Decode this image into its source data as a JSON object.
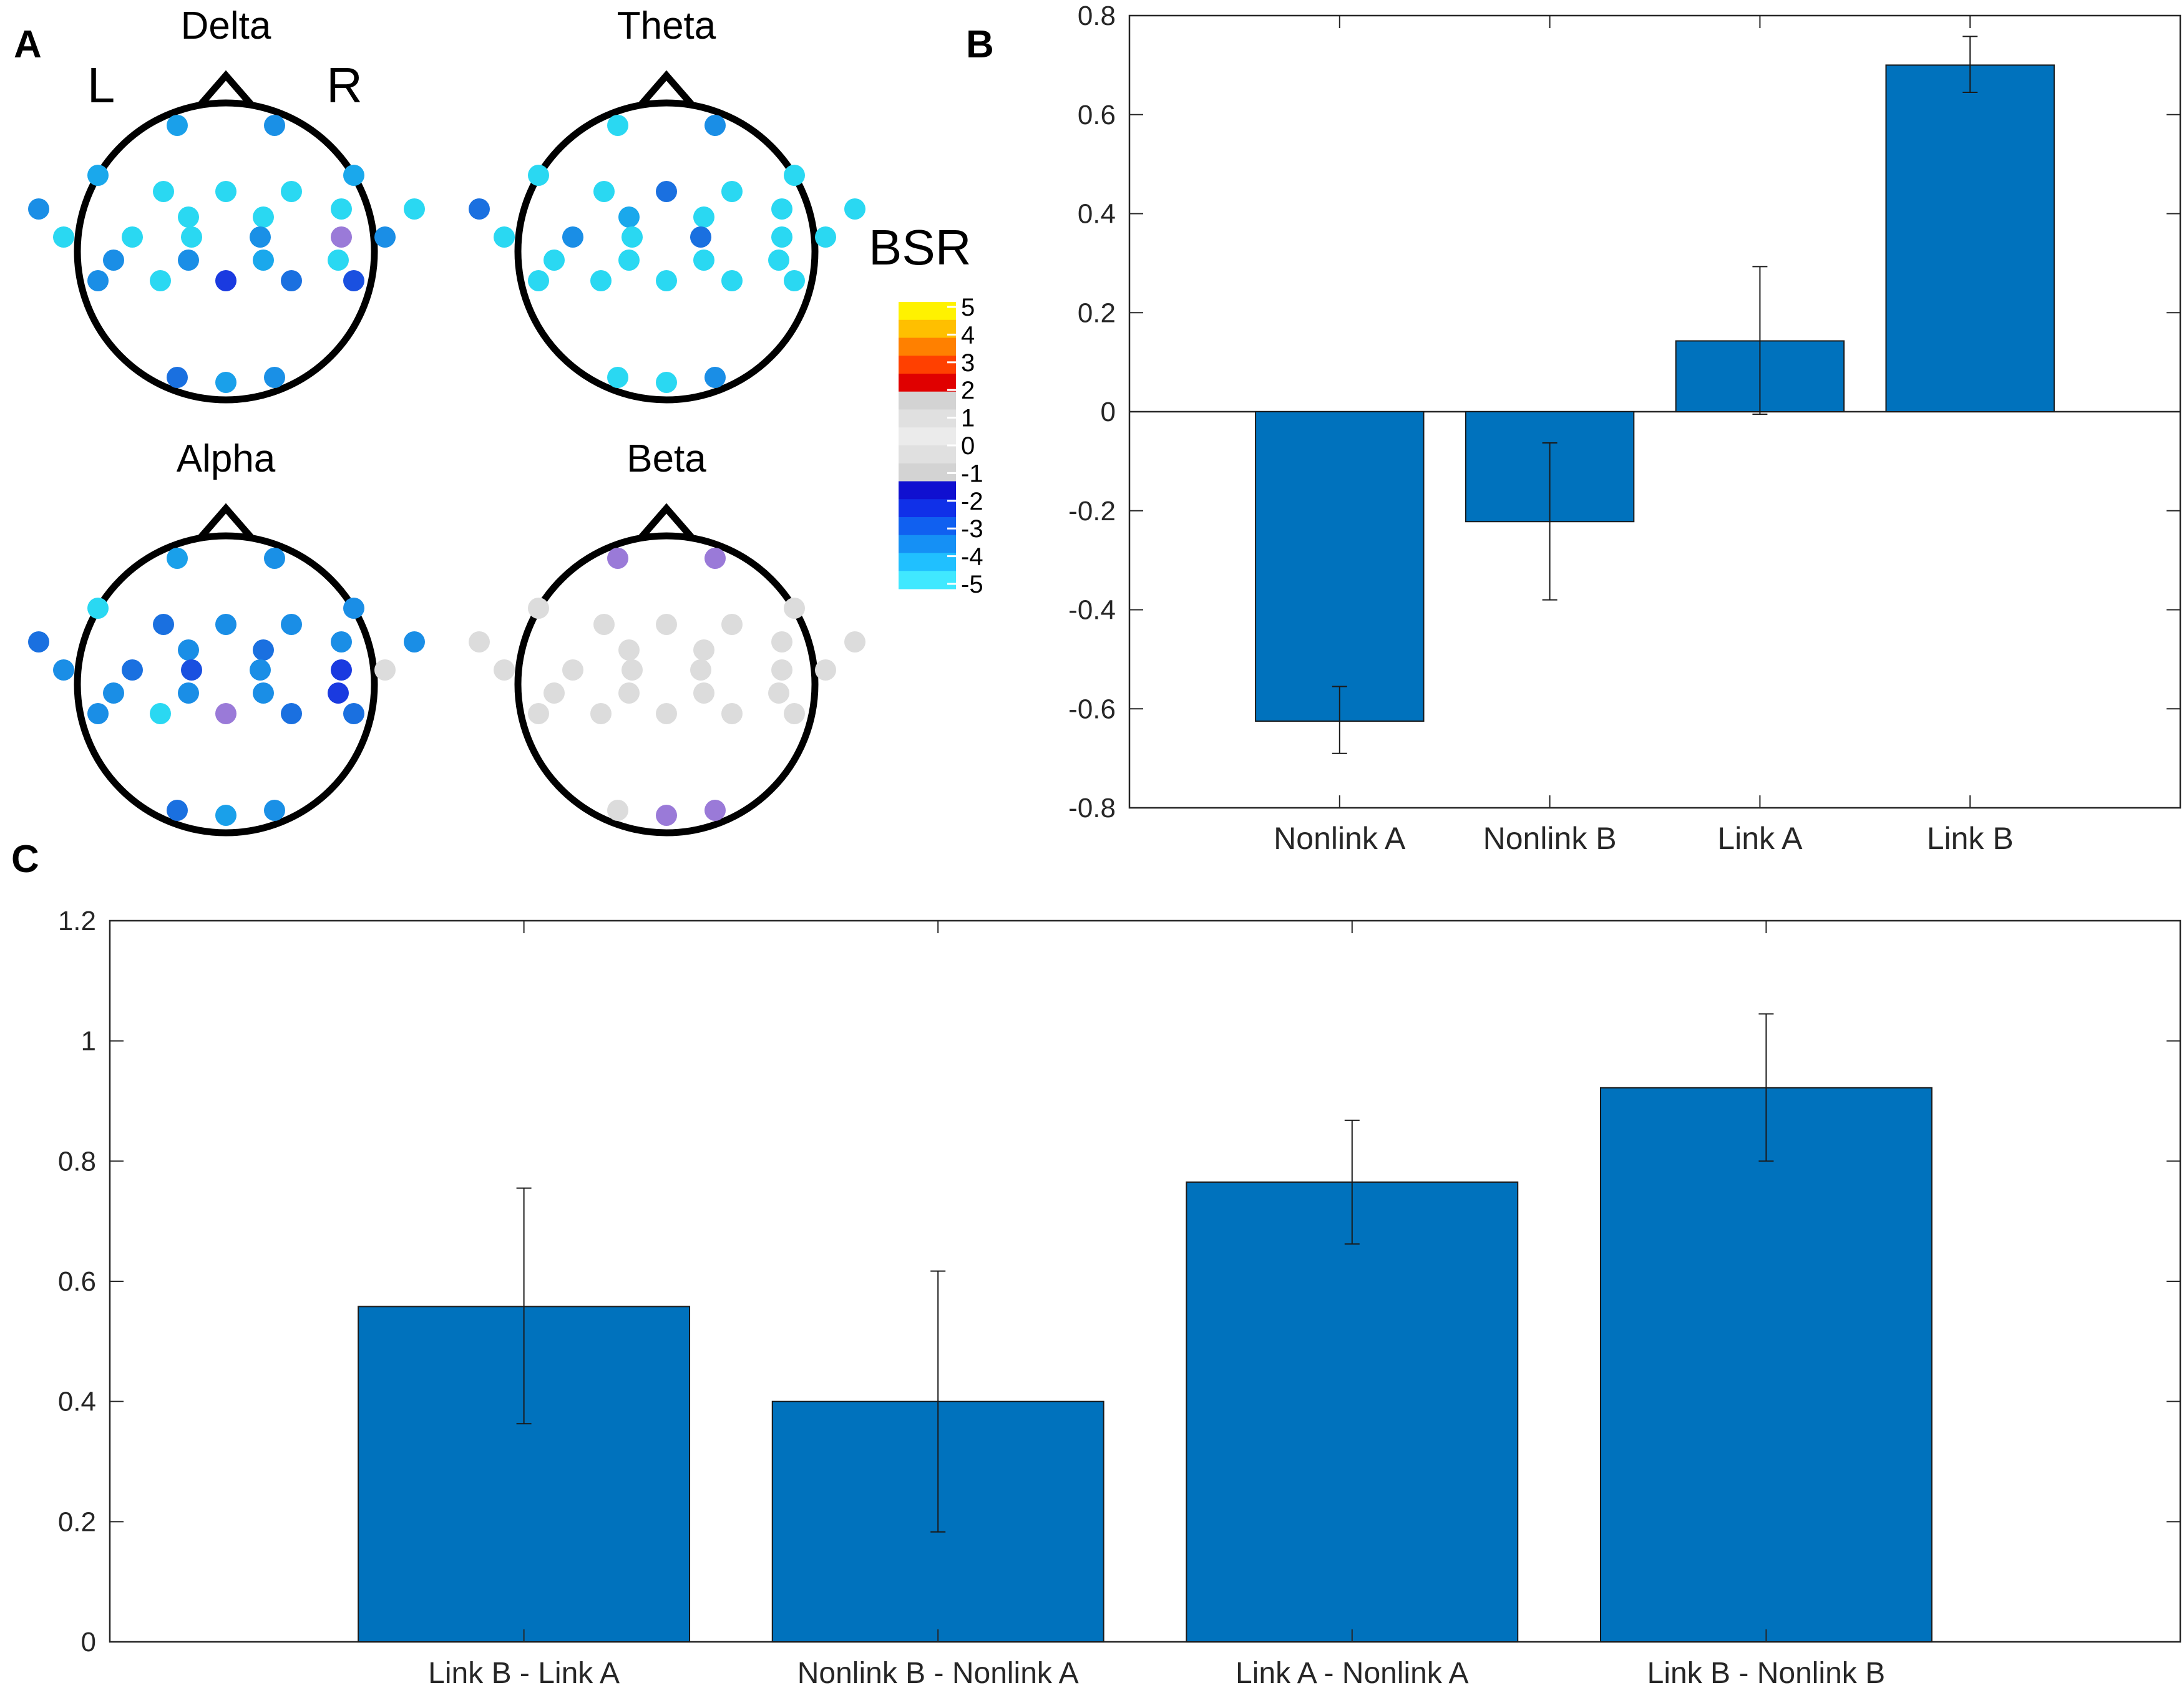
{
  "panels": {
    "a_label": "A",
    "b_label": "B",
    "c_label": "C"
  },
  "topomap": {
    "left_label": "L",
    "right_label": "R",
    "colorbar_title": "BSR",
    "colorbar_ticks": [
      "5",
      "4",
      "3",
      "2",
      "1",
      "0",
      "-1",
      "-2",
      "-3",
      "-4",
      "-5"
    ],
    "colorbar_colors": [
      "#fff200",
      "#ffbf00",
      "#ff8000",
      "#ff4000",
      "#e00000",
      "#d3d3d3",
      "#e0e0e0",
      "#ebebeb",
      "#e0e0e0",
      "#d3d3d3",
      "#1010d0",
      "#1030e8",
      "#1060f0",
      "#1590f5",
      "#20c0ff",
      "#40e8ff"
    ],
    "bands": [
      {
        "name": "Delta",
        "colors": [
          "#1aa0ea",
          "#1a90e6",
          "#1aa8ec",
          "#1aa8ec",
          "#2ad8f2",
          "#2ad8f2",
          "#2ad8f2",
          "#1a8ee6",
          "#2ad8f2",
          "#2ad8f2",
          "#2ad8f2",
          "#2ad8f2",
          "#2ad8f2",
          "#2ad8f2",
          "#2ad8f2",
          "#1a90e6",
          "#9a7ad8",
          "#1a8ee6",
          "#1a8ee6",
          "#1a8ee6",
          "#1aa8ec",
          "#2ad8f2",
          "#1a8ee6",
          "#2ad8f2",
          "#1a3ae0",
          "#1a70e0",
          "#1a50e0",
          "#1a70e0"
        ]
      },
      {
        "name": "Theta",
        "colors": [
          "#2ad8f2",
          "#1a8ee6",
          "#2ad8f2",
          "#2ad8f2",
          "#2ad8f2",
          "#1a70e0",
          "#2ad8f2",
          "#1a70e0",
          "#1aa8ec",
          "#2ad8f2",
          "#2ad8f2",
          "#2ad8f2",
          "#2ad8f2",
          "#1a8ee6",
          "#2ad8f2",
          "#1a70e0",
          "#2ad8f2",
          "#2ad8f2",
          "#2ad8f2",
          "#2ad8f2",
          "#2ad8f2",
          "#2ad8f2",
          "#2ad8f2",
          "#2ad8f2",
          "#2ad8f2",
          "#2ad8f2",
          "#2ad8f2",
          "#2ad8f2"
        ]
      },
      {
        "name": "Alpha",
        "colors": [
          "#1aa0ea",
          "#1a90e6",
          "#2ad8f2",
          "#1a8ee6",
          "#1a70e0",
          "#1a8ee6",
          "#1a8ee6",
          "#1a70e0",
          "#1a8ee6",
          "#1a70e0",
          "#1a8ee6",
          "#1a8ee6",
          "#1a8ee6",
          "#1a70e0",
          "#1a50e0",
          "#1a8ee6",
          "#1a3ae0",
          "#dcdcdc",
          "#1a8ee6",
          "#1a8ee6",
          "#1a8ee6",
          "#1a3ae0",
          "#1a8ee6",
          "#2ad8f2",
          "#9a7ad8",
          "#1a70e0",
          "#1a70e0",
          "#1a70e0"
        ]
      },
      {
        "name": "Beta",
        "colors": [
          "#9a7ad8",
          "#9a7ad8",
          "#dcdcdc",
          "#dcdcdc",
          "#dcdcdc",
          "#dcdcdc",
          "#dcdcdc",
          "#dcdcdc",
          "#dcdcdc",
          "#dcdcdc",
          "#dcdcdc",
          "#dcdcdc",
          "#dcdcdc",
          "#dcdcdc",
          "#dcdcdc",
          "#dcdcdc",
          "#dcdcdc",
          "#dcdcdc",
          "#dcdcdc",
          "#dcdcdc",
          "#dcdcdc",
          "#dcdcdc",
          "#dcdcdc",
          "#dcdcdc",
          "#dcdcdc",
          "#dcdcdc",
          "#dcdcdc",
          "#dcdcdc"
        ]
      }
    ]
  },
  "chart_data": [
    {
      "id": "B",
      "type": "bar",
      "categories": [
        "Nonlink A",
        "Nonlink B",
        "Link A",
        "Link B"
      ],
      "values": [
        -0.625,
        -0.222,
        0.143,
        0.7
      ],
      "error_low": [
        -0.69,
        -0.38,
        -0.005,
        0.645
      ],
      "error_high": [
        -0.555,
        -0.063,
        0.293,
        0.758
      ],
      "ylim": [
        -0.8,
        0.8
      ],
      "yticks": [
        0.8,
        0.6,
        0.4,
        0.2,
        0,
        -0.2,
        -0.4,
        -0.6,
        -0.8
      ],
      "ytick_labels": [
        "0.8",
        "0.6",
        "0.4",
        "0.2",
        "0",
        "-0.2",
        "-0.4",
        "-0.6",
        "-0.8"
      ],
      "xlim": [
        0,
        5
      ],
      "bar_color": "#0072bd",
      "title": "",
      "xlabel": "",
      "ylabel": ""
    },
    {
      "id": "C",
      "type": "bar",
      "categories": [
        "Link B - Link A",
        "Nonlink B - Nonlink A",
        "Link A - Nonlink A",
        "Link B - Nonlink B"
      ],
      "values": [
        0.558,
        0.4,
        0.765,
        0.922
      ],
      "error_low": [
        0.363,
        0.183,
        0.662,
        0.8
      ],
      "error_high": [
        0.755,
        0.617,
        0.868,
        1.045
      ],
      "ylim": [
        0,
        1.2
      ],
      "yticks": [
        1.2,
        1,
        0.8,
        0.6,
        0.4,
        0.2,
        0
      ],
      "ytick_labels": [
        "1.2",
        "1",
        "0.8",
        "0.6",
        "0.4",
        "0.2",
        "0"
      ],
      "xlim": [
        0,
        5
      ],
      "bar_color": "#0072bd",
      "title": "",
      "xlabel": "",
      "ylabel": ""
    }
  ]
}
